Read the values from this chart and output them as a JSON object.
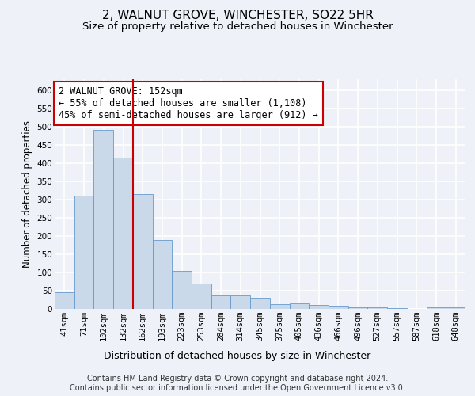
{
  "title": "2, WALNUT GROVE, WINCHESTER, SO22 5HR",
  "subtitle": "Size of property relative to detached houses in Winchester",
  "xlabel": "Distribution of detached houses by size in Winchester",
  "ylabel": "Number of detached properties",
  "categories": [
    "41sqm",
    "71sqm",
    "102sqm",
    "132sqm",
    "162sqm",
    "193sqm",
    "223sqm",
    "253sqm",
    "284sqm",
    "314sqm",
    "345sqm",
    "375sqm",
    "405sqm",
    "436sqm",
    "466sqm",
    "496sqm",
    "527sqm",
    "557sqm",
    "587sqm",
    "618sqm",
    "648sqm"
  ],
  "values": [
    46,
    310,
    490,
    415,
    315,
    190,
    105,
    70,
    37,
    38,
    30,
    12,
    15,
    10,
    8,
    5,
    5,
    2,
    1,
    5,
    5
  ],
  "bar_color": "#c9d9ea",
  "bar_edge_color": "#6699cc",
  "background_color": "#eef2f8",
  "grid_color": "#ffffff",
  "vline_x": 3.5,
  "vline_color": "#cc0000",
  "annotation_text": "2 WALNUT GROVE: 152sqm\n← 55% of detached houses are smaller (1,108)\n45% of semi-detached houses are larger (912) →",
  "annotation_box_color": "#ffffff",
  "annotation_box_edge": "#cc0000",
  "ylim": [
    0,
    630
  ],
  "yticks": [
    0,
    50,
    100,
    150,
    200,
    250,
    300,
    350,
    400,
    450,
    500,
    550,
    600
  ],
  "footer": "Contains HM Land Registry data © Crown copyright and database right 2024.\nContains public sector information licensed under the Open Government Licence v3.0.",
  "title_fontsize": 11,
  "subtitle_fontsize": 9.5,
  "xlabel_fontsize": 9,
  "ylabel_fontsize": 8.5,
  "tick_fontsize": 7.5,
  "annotation_fontsize": 8.5,
  "footer_fontsize": 7
}
